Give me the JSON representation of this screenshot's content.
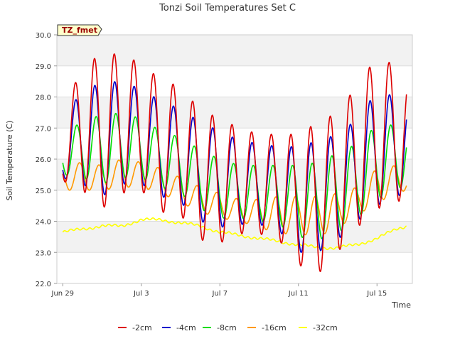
{
  "chart_data": {
    "type": "line",
    "title": "Tonzi Soil Temperatures Set C",
    "xlabel": "Time",
    "ylabel": "Soil Temperature (C)",
    "site_tag": "TZ_fmet",
    "x_ticks": [
      {
        "day": 0,
        "label": "Jun 29"
      },
      {
        "day": 4,
        "label": "Jul 3"
      },
      {
        "day": 8,
        "label": "Jul 7"
      },
      {
        "day": 12,
        "label": "Jul 11"
      },
      {
        "day": 16,
        "label": "Jul 15"
      }
    ],
    "x_unit": "days since Jun 29 00:00",
    "xlim": [
      -0.3,
      17.8
    ],
    "ylim": [
      22.0,
      30.0
    ],
    "y_ticks": [
      "22.0",
      "23.0",
      "24.0",
      "25.0",
      "26.0",
      "27.0",
      "28.0",
      "29.0",
      "30.0"
    ],
    "grid": true,
    "legend_position": "bottom",
    "series": [
      {
        "name": "-2cm",
        "color": "#dd0000",
        "day_points": [
          0,
          1,
          2,
          3,
          4,
          5,
          6,
          7,
          8,
          9,
          10,
          11,
          12,
          13,
          14,
          15,
          16,
          17,
          17.5
        ],
        "max": [
          27.0,
          29.3,
          29.2,
          29.5,
          29.0,
          28.6,
          28.3,
          27.6,
          27.3,
          27.0,
          26.8,
          26.8,
          26.8,
          27.2,
          27.5,
          28.4,
          29.3,
          29.0,
          28.6
        ],
        "min": [
          25.3,
          25.0,
          24.4,
          24.9,
          25.0,
          24.3,
          24.2,
          23.4,
          23.3,
          23.6,
          23.6,
          23.4,
          22.6,
          22.3,
          23.0,
          23.8,
          24.4,
          24.6,
          24.8
        ],
        "phase": 0.62
      },
      {
        "name": "-4cm",
        "color": "#0000cc",
        "day_points": [
          0,
          1,
          2,
          3,
          4,
          5,
          6,
          7,
          8,
          9,
          10,
          11,
          12,
          13,
          14,
          15,
          16,
          17,
          17.5
        ],
        "max": [
          26.8,
          28.5,
          28.3,
          28.6,
          28.2,
          27.9,
          27.6,
          27.2,
          26.9,
          26.6,
          26.5,
          26.4,
          26.4,
          26.6,
          26.8,
          27.3,
          28.2,
          28.0,
          27.8
        ],
        "min": [
          25.4,
          25.2,
          24.8,
          25.2,
          25.2,
          24.8,
          24.6,
          24.0,
          23.8,
          23.9,
          23.9,
          23.7,
          23.0,
          23.0,
          23.4,
          24.0,
          24.5,
          24.8,
          24.9
        ],
        "phase": 0.64
      },
      {
        "name": "-8cm",
        "color": "#00dd00",
        "day_points": [
          0,
          1,
          2,
          3,
          4,
          5,
          6,
          7,
          8,
          9,
          10,
          11,
          12,
          13,
          14,
          15,
          16,
          17,
          17.5
        ],
        "max": [
          26.6,
          27.3,
          27.4,
          27.5,
          27.3,
          26.9,
          26.7,
          26.3,
          26.0,
          25.8,
          25.8,
          25.8,
          25.8,
          25.9,
          26.2,
          26.5,
          27.1,
          27.1,
          27.0
        ],
        "min": [
          25.5,
          25.4,
          25.2,
          25.4,
          25.4,
          25.1,
          24.9,
          24.4,
          24.1,
          24.1,
          24.0,
          23.9,
          23.5,
          23.4,
          23.6,
          24.1,
          24.7,
          25.0,
          25.2
        ],
        "phase": 0.7
      },
      {
        "name": "-16cm",
        "color": "#ff9900",
        "day_points": [
          0,
          1,
          2,
          3,
          4,
          5,
          6,
          7,
          8,
          9,
          10,
          11,
          12,
          13,
          14,
          15,
          16,
          17,
          17.5
        ],
        "max": [
          25.8,
          25.9,
          25.8,
          26.0,
          25.9,
          25.7,
          25.4,
          25.1,
          24.9,
          24.7,
          24.7,
          24.8,
          24.8,
          24.8,
          24.9,
          25.1,
          25.7,
          25.8,
          25.7
        ],
        "min": [
          25.0,
          25.0,
          25.0,
          25.1,
          25.1,
          24.9,
          24.6,
          24.3,
          24.1,
          24.0,
          23.8,
          23.6,
          23.6,
          23.5,
          23.8,
          24.2,
          24.6,
          24.9,
          25.0
        ],
        "phase": 0.85
      },
      {
        "name": "-32cm",
        "color": "#ffff00",
        "day_points": [
          0,
          1,
          2,
          3,
          4,
          5,
          6,
          7,
          8,
          9,
          10,
          11,
          12,
          13,
          14,
          15,
          16,
          17,
          17.5
        ],
        "max": [
          23.7,
          23.8,
          23.9,
          23.9,
          24.1,
          24.1,
          24.0,
          23.9,
          23.7,
          23.6,
          23.5,
          23.4,
          23.3,
          23.2,
          23.2,
          23.3,
          23.5,
          23.8,
          23.9
        ],
        "min": [
          23.6,
          23.7,
          23.8,
          23.8,
          24.0,
          24.0,
          23.9,
          23.8,
          23.6,
          23.5,
          23.4,
          23.3,
          23.2,
          23.1,
          23.1,
          23.2,
          23.4,
          23.7,
          23.8
        ],
        "phase": 0.0
      }
    ]
  }
}
